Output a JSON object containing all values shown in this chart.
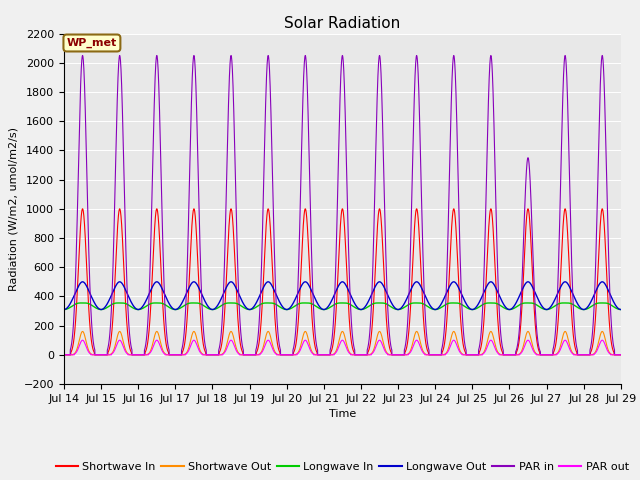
{
  "title": "Solar Radiation",
  "xlabel": "Time",
  "ylabel": "Radiation (W/m2, umol/m2/s)",
  "ylim": [
    -200,
    2200
  ],
  "x_tick_labels": [
    "Jul 14",
    "Jul 15",
    "Jul 16",
    "Jul 17",
    "Jul 18",
    "Jul 19",
    "Jul 20",
    "Jul 21",
    "Jul 22",
    "Jul 23",
    "Jul 24",
    "Jul 25",
    "Jul 26",
    "Jul 27",
    "Jul 28",
    "Jul 29"
  ],
  "num_days": 15,
  "shortwave_in_peak": 1000,
  "shortwave_out_peak": 160,
  "longwave_in_base": 340,
  "longwave_in_day_amp": 30,
  "longwave_out_base": 390,
  "longwave_out_day_amp": 80,
  "par_in_peak": 2050,
  "par_out_peak": 100,
  "par_out_zero_threshold": 5,
  "annotation_text": "WP_met",
  "annotation_bg": "#ffffcc",
  "annotation_border": "#8b6914",
  "line_colors": {
    "shortwave_in": "#ff0000",
    "shortwave_out": "#ff8c00",
    "longwave_in": "#00cc00",
    "longwave_out": "#0000cc",
    "par_in": "#8800bb",
    "par_out": "#ff00ff"
  },
  "legend_labels": [
    "Shortwave In",
    "Shortwave Out",
    "Longwave In",
    "Longwave Out",
    "PAR in",
    "PAR out"
  ],
  "bg_color": "#e8e8e8",
  "fig_color": "#f0f0f0",
  "grid_color": "#ffffff",
  "title_fontsize": 11,
  "axis_fontsize": 8,
  "tick_fontsize": 8,
  "legend_fontsize": 8
}
